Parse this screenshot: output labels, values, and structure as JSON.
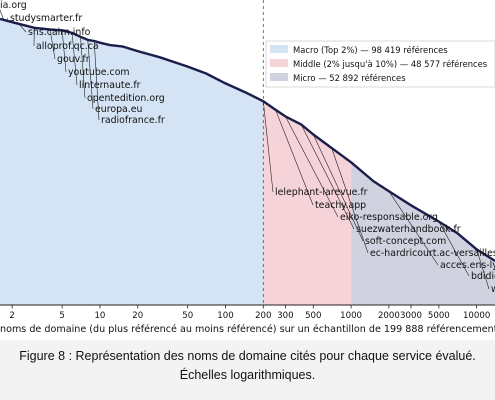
{
  "chart_data": {
    "type": "area",
    "xscale": "log",
    "yscale": "log",
    "xlim": [
      1.6,
      14000
    ],
    "ylim": [
      1,
      2000
    ],
    "xlabel": "noms de domaine (du plus référencé au moins référencé) sur un échantillon de 199 888 référencements",
    "xticks": [
      2,
      5,
      10,
      20,
      50,
      100,
      200,
      300,
      500,
      1000,
      2000,
      3000,
      5000,
      10000
    ],
    "xtick_labels": [
      "2",
      "5",
      "10",
      "20",
      "50",
      "100",
      "200",
      "300",
      "500",
      "1000",
      "2000",
      "3000",
      "5000",
      "10000"
    ],
    "threshold_x": 200,
    "regions": [
      {
        "name": "Macro (Top 2%) — 98 419 références",
        "x_start": 1.6,
        "x_end": 200,
        "color": "#d4e4f4"
      },
      {
        "name": "Middle (2% jusqu'à 10%) — 48 577 références",
        "x_start": 200,
        "x_end": 1000,
        "color": "#f5d3d8"
      },
      {
        "name": "Micro — 52 892 références",
        "x_start": 1000,
        "x_end": 14000,
        "color": "#d1d2e0"
      }
    ],
    "series": [
      {
        "line_color": "#1b1d4a",
        "x": [
          1.6,
          2,
          3,
          4,
          5,
          6,
          7,
          8,
          9,
          10,
          12,
          15,
          20,
          30,
          50,
          70,
          100,
          150,
          200,
          250,
          300,
          400,
          500,
          700,
          1000,
          1500,
          2000,
          3000,
          5000,
          7000,
          10000,
          14000
        ],
        "y": [
          1250,
          1150,
          1000,
          960,
          940,
          880,
          800,
          740,
          720,
          690,
          650,
          630,
          560,
          480,
          380,
          320,
          250,
          195,
          160,
          130,
          110,
          90,
          70,
          50,
          35,
          22,
          17,
          12,
          8,
          6,
          4,
          3
        ]
      }
    ],
    "annotations": [
      {
        "text": "ia.org",
        "x": 1.7,
        "y": 1250
      },
      {
        "text": "studysmarter.fr",
        "x": 1.8,
        "y": 1200
      },
      {
        "text": "shs.cairn.info",
        "x": 2.2,
        "y": 1150
      },
      {
        "text": "alloprof.qc.ca",
        "x": 3,
        "y": 1000
      },
      {
        "text": "gouv.fr",
        "x": 4,
        "y": 960
      },
      {
        "text": "youtube.com",
        "x": 5,
        "y": 940
      },
      {
        "text": "linternaute.fr",
        "x": 6,
        "y": 880
      },
      {
        "text": "opentedition.org",
        "x": 7,
        "y": 800
      },
      {
        "text": "europa.eu",
        "x": 8,
        "y": 740
      },
      {
        "text": "radiofrance.fr",
        "x": 9,
        "y": 720
      },
      {
        "text": "lelephant-larevue.fr",
        "x": 200,
        "y": 160
      },
      {
        "text": "teachy.app",
        "x": 250,
        "y": 130
      },
      {
        "text": "eiko-responsable.org",
        "x": 300,
        "y": 110
      },
      {
        "text": "suezwaterhandbook.fr",
        "x": 400,
        "y": 90
      },
      {
        "text": "soft-concept.com",
        "x": 500,
        "y": 70
      },
      {
        "text": "ec-hardricourt.ac-versailles.fr",
        "x": 700,
        "y": 50
      },
      {
        "text": "acces.ens-lyon",
        "x": 2000,
        "y": 17
      },
      {
        "text": "bdidie",
        "x": 5000,
        "y": 8
      },
      {
        "text": "w",
        "x": 10000,
        "y": 4
      }
    ]
  },
  "caption": {
    "line1": "Figure 8 : Représentation des noms de domaine cités pour chaque service évalué.",
    "line2": "Échelles logarithmiques."
  }
}
